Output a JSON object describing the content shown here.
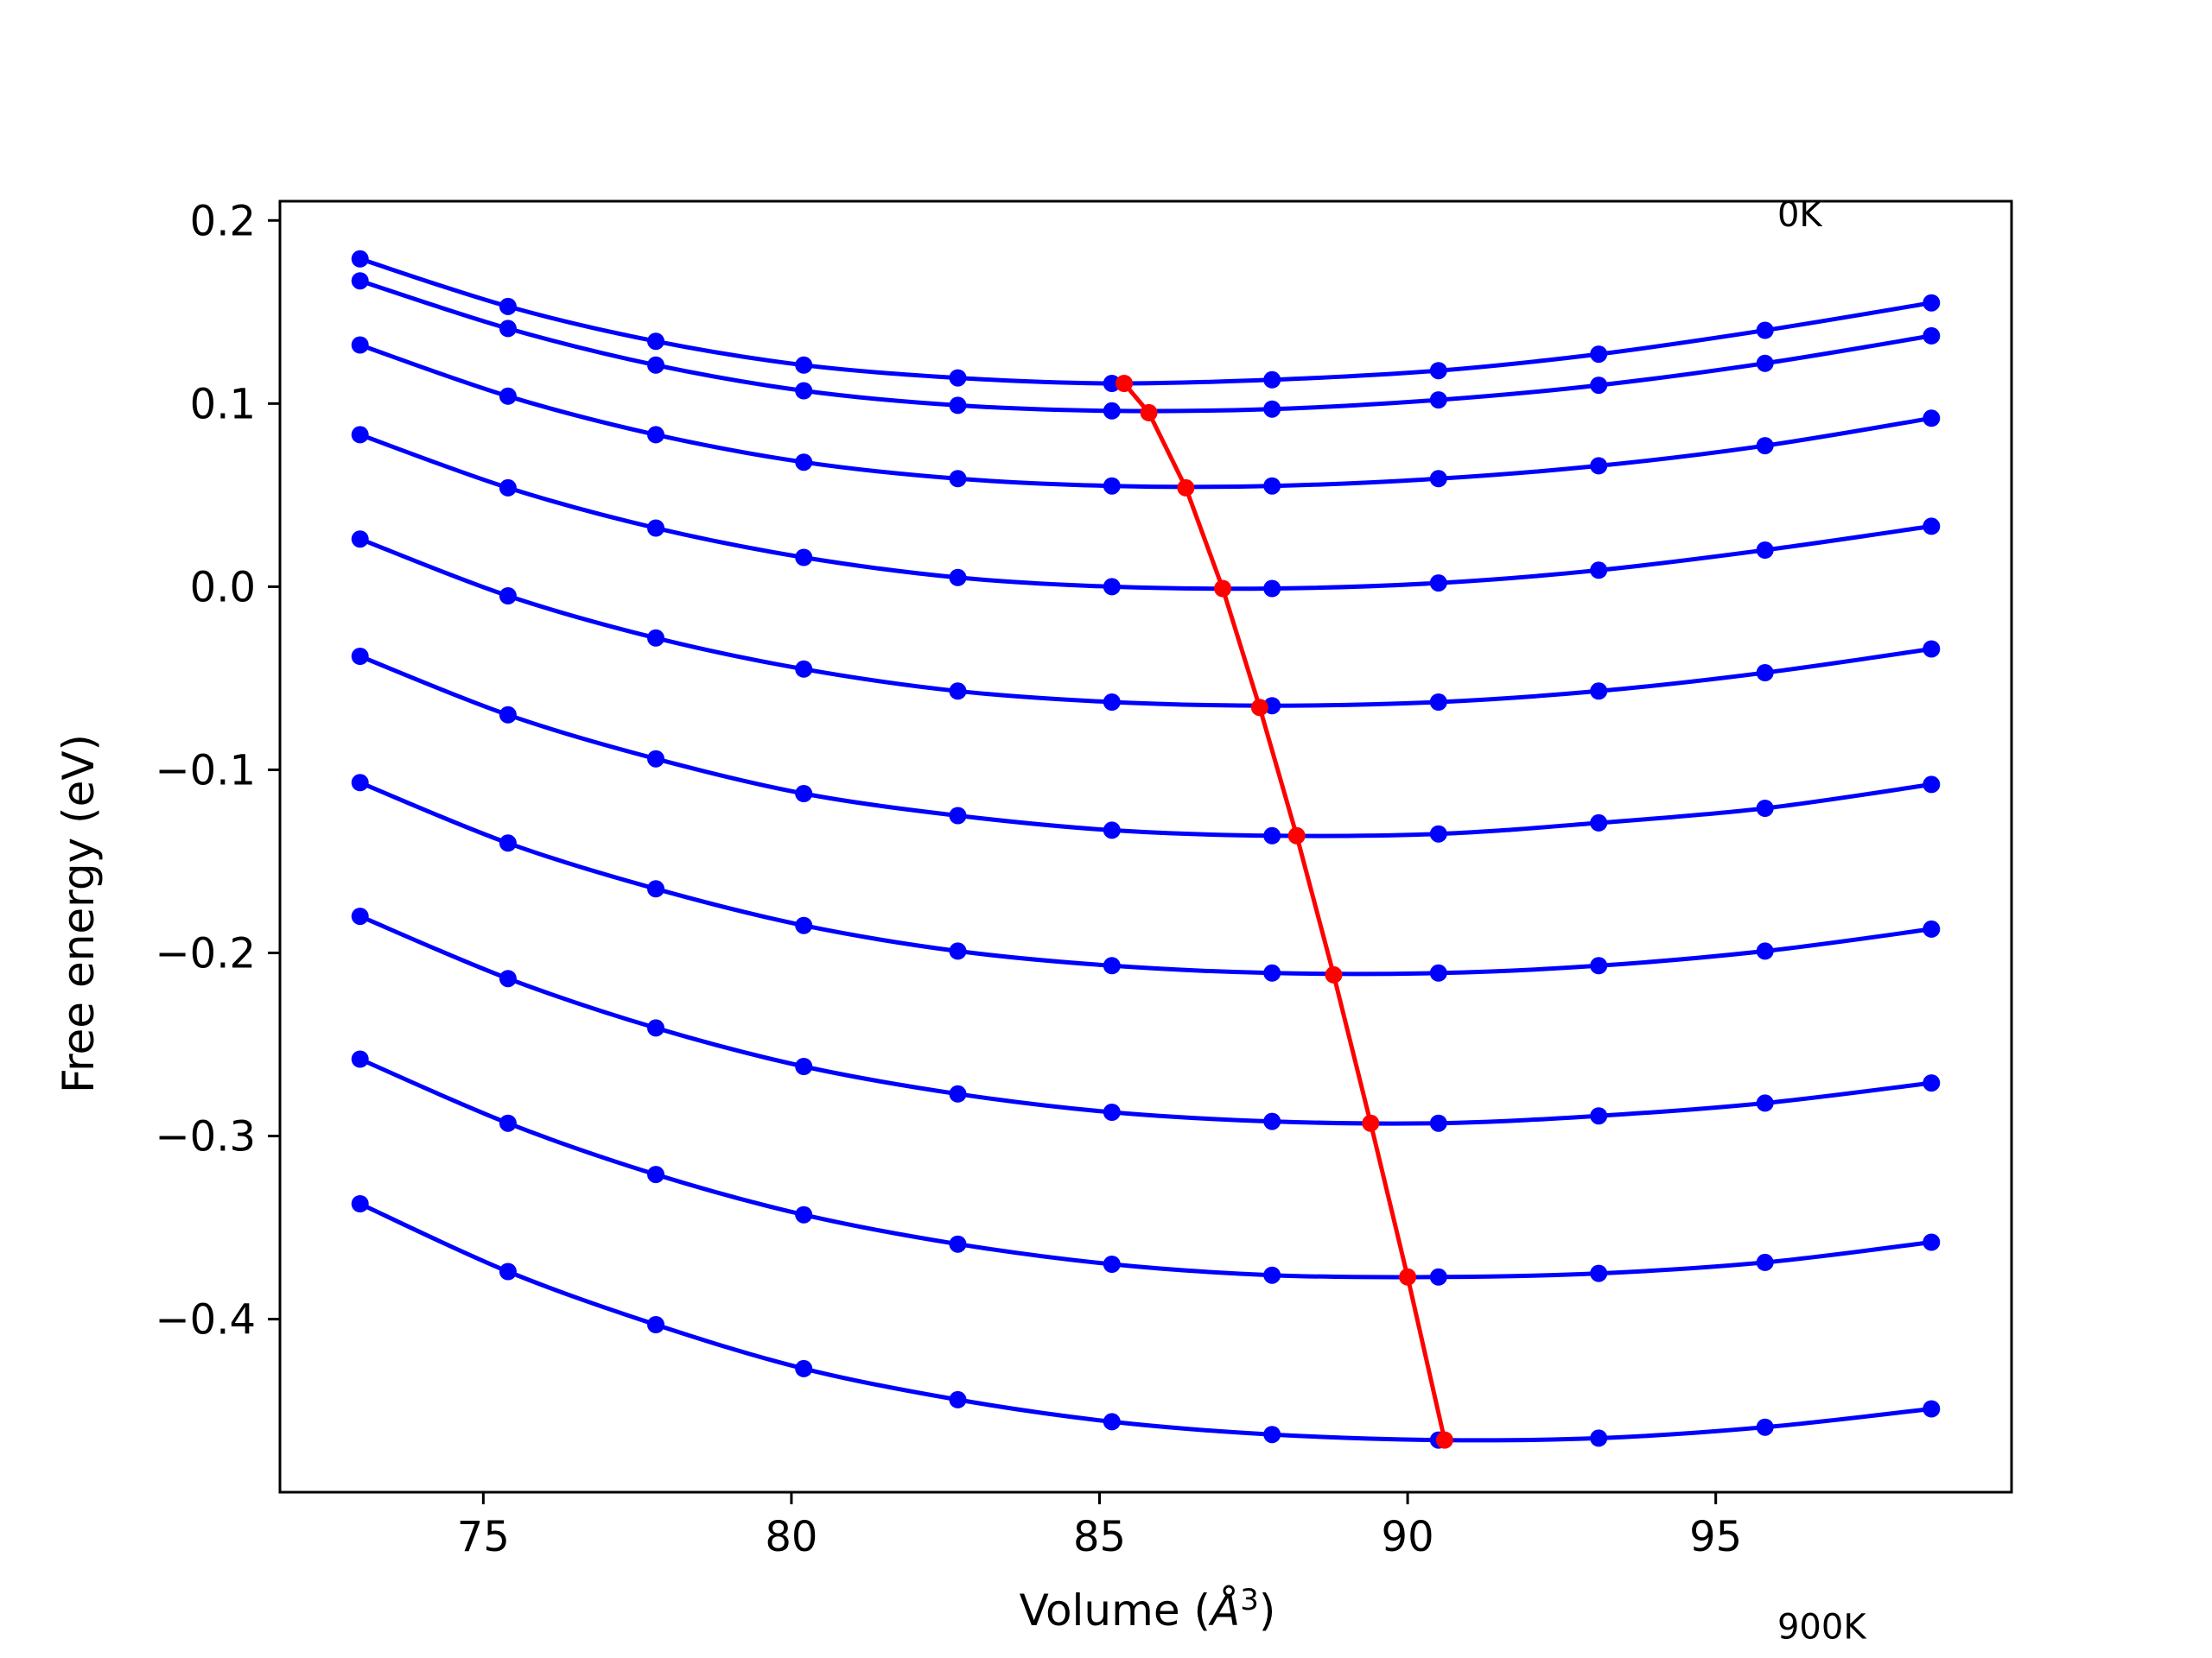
{
  "chart_data": {
    "type": "line",
    "title": "",
    "xlabel": "Volume (Å³)",
    "xlabel_parts": {
      "text": "Volume (",
      "symbol": "Å",
      "sup": "3",
      "close": ")"
    },
    "ylabel": "Free energy (eV)",
    "xlim": [
      71.7,
      99.8
    ],
    "ylim": [
      -0.4945,
      0.2105
    ],
    "xticks": [
      75,
      80,
      85,
      90,
      95
    ],
    "xtick_labels": [
      "75",
      "80",
      "85",
      "90",
      "95"
    ],
    "yticks": [
      0.2,
      0.1,
      0.0,
      -0.1,
      -0.2,
      -0.3,
      -0.4
    ],
    "ytick_labels": [
      "0.2",
      "0.1",
      "0.0",
      "−0.1",
      "−0.2",
      "−0.3",
      "−0.4"
    ],
    "grid": false,
    "annotations": [
      {
        "text": "0K",
        "x": 96.0,
        "y": 0.2105,
        "valign": "top"
      },
      {
        "text": "900K",
        "x": 96.0,
        "y": -0.5745,
        "valign": "bottom"
      }
    ],
    "colors": {
      "curves": "#0000ff",
      "minimum_line": "#ff0000",
      "axes": "#000000"
    },
    "volumes": [
      73.0,
      75.4,
      77.8,
      80.2,
      82.7,
      85.2,
      87.8,
      90.5,
      93.1,
      95.8,
      98.5
    ],
    "series": [
      {
        "values": [
          0.179,
          0.153,
          0.134,
          0.121,
          0.114,
          0.111,
          0.113,
          0.118,
          0.127,
          0.14,
          0.155
        ]
      },
      {
        "values": [
          0.167,
          0.141,
          0.121,
          0.107,
          0.099,
          0.096,
          0.097,
          0.102,
          0.11,
          0.122,
          0.137
        ]
      },
      {
        "values": [
          0.132,
          0.104,
          0.083,
          0.068,
          0.059,
          0.055,
          0.055,
          0.059,
          0.066,
          0.077,
          0.092
        ]
      },
      {
        "values": [
          0.083,
          0.054,
          0.032,
          0.016,
          0.005,
          0.0,
          -0.001,
          0.002,
          0.009,
          0.02,
          0.033
        ]
      },
      {
        "values": [
          0.026,
          -0.005,
          -0.028,
          -0.045,
          -0.057,
          -0.063,
          -0.065,
          -0.063,
          -0.057,
          -0.047,
          -0.034
        ]
      },
      {
        "values": [
          -0.038,
          -0.07,
          -0.094,
          -0.113,
          -0.125,
          -0.133,
          -0.136,
          -0.135,
          -0.129,
          -0.121,
          -0.108
        ]
      },
      {
        "values": [
          -0.107,
          -0.14,
          -0.165,
          -0.185,
          -0.199,
          -0.207,
          -0.211,
          -0.211,
          -0.207,
          -0.199,
          -0.187
        ]
      },
      {
        "values": [
          -0.18,
          -0.214,
          -0.241,
          -0.262,
          -0.277,
          -0.287,
          -0.292,
          -0.293,
          -0.289,
          -0.282,
          -0.271
        ]
      },
      {
        "values": [
          -0.258,
          -0.293,
          -0.321,
          -0.343,
          -0.359,
          -0.37,
          -0.376,
          -0.377,
          -0.375,
          -0.369,
          -0.358
        ]
      },
      {
        "values": [
          -0.337,
          -0.374,
          -0.403,
          -0.427,
          -0.444,
          -0.456,
          -0.463,
          -0.466,
          -0.465,
          -0.459,
          -0.449
        ]
      }
    ],
    "minimum_line": {
      "x": [
        85.4,
        85.8,
        86.4,
        87.0,
        87.6,
        88.2,
        88.8,
        89.4,
        90.0,
        90.6
      ],
      "y": [
        0.111,
        0.095,
        0.054,
        -0.001,
        -0.066,
        -0.136,
        -0.212,
        -0.293,
        -0.377,
        -0.466
      ]
    }
  }
}
